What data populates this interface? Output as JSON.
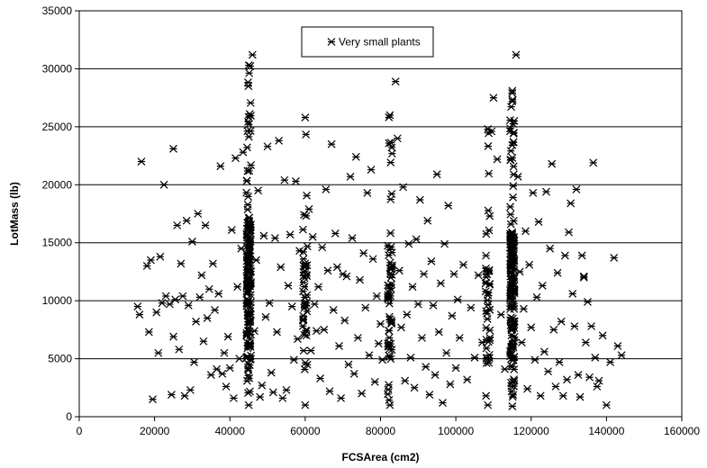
{
  "chart_data": {
    "type": "scatter",
    "title": "",
    "xlabel": "FCSArea (cm2)",
    "ylabel": "LotMass (lb)",
    "xlim": [
      0,
      160000
    ],
    "ylim": [
      0,
      35000
    ],
    "x_ticks": [
      0,
      20000,
      40000,
      60000,
      80000,
      100000,
      120000,
      140000,
      160000
    ],
    "y_ticks": [
      0,
      5000,
      10000,
      15000,
      20000,
      25000,
      30000,
      35000
    ],
    "x_tick_labels": [
      "0",
      "20000",
      "40000",
      "60000",
      "80000",
      "100000",
      "120000",
      "140000",
      "160000"
    ],
    "y_tick_labels": [
      "0",
      "5000",
      "10000",
      "15000",
      "20000",
      "25000",
      "30000",
      "35000"
    ],
    "grid": "horizontal",
    "legend_position": "top-center",
    "marker": "asterisk",
    "series": [
      {
        "name": "Very small plants",
        "color": "#000000",
        "points": [
          [
            16500,
            22000
          ],
          [
            22500,
            20000
          ],
          [
            25000,
            23100
          ],
          [
            15500,
            9500
          ],
          [
            16000,
            8800
          ],
          [
            18000,
            13000
          ],
          [
            18500,
            7300
          ],
          [
            19000,
            13500
          ],
          [
            19500,
            1500
          ],
          [
            20500,
            9000
          ],
          [
            21000,
            5500
          ],
          [
            21500,
            13800
          ],
          [
            22000,
            9800
          ],
          [
            23000,
            10400
          ],
          [
            24000,
            9700
          ],
          [
            24500,
            1900
          ],
          [
            25000,
            6900
          ],
          [
            25500,
            10100
          ],
          [
            26000,
            16500
          ],
          [
            26500,
            5800
          ],
          [
            27000,
            13200
          ],
          [
            27500,
            10400
          ],
          [
            28000,
            1800
          ],
          [
            28500,
            16900
          ],
          [
            29000,
            9600
          ],
          [
            29500,
            2300
          ],
          [
            30000,
            15100
          ],
          [
            30500,
            4700
          ],
          [
            31000,
            8200
          ],
          [
            31500,
            17500
          ],
          [
            32000,
            10300
          ],
          [
            32500,
            12200
          ],
          [
            33000,
            6500
          ],
          [
            33500,
            16500
          ],
          [
            34000,
            8500
          ],
          [
            34500,
            11000
          ],
          [
            35000,
            3600
          ],
          [
            35500,
            13200
          ],
          [
            36000,
            9200
          ],
          [
            36500,
            4100
          ],
          [
            37000,
            10600
          ],
          [
            37500,
            21600
          ],
          [
            38000,
            3700
          ],
          [
            38500,
            5500
          ],
          [
            39000,
            2600
          ],
          [
            39500,
            6900
          ],
          [
            40000,
            4200
          ],
          [
            40500,
            16100
          ],
          [
            41000,
            1600
          ],
          [
            41500,
            22300
          ],
          [
            42000,
            11200
          ],
          [
            42500,
            5000
          ],
          [
            43000,
            14500
          ],
          [
            43500,
            22800
          ],
          [
            46000,
            31200
          ],
          [
            46500,
            7400
          ],
          [
            47000,
            13500
          ],
          [
            47500,
            19500
          ],
          [
            48000,
            1700
          ],
          [
            48500,
            2700
          ],
          [
            49000,
            15600
          ],
          [
            49500,
            8600
          ],
          [
            50000,
            23300
          ],
          [
            50500,
            9800
          ],
          [
            51000,
            3800
          ],
          [
            51500,
            2100
          ],
          [
            52000,
            15400
          ],
          [
            52500,
            7300
          ],
          [
            53000,
            23800
          ],
          [
            53500,
            12900
          ],
          [
            54000,
            1600
          ],
          [
            54500,
            20400
          ],
          [
            55000,
            2300
          ],
          [
            55500,
            11300
          ],
          [
            56000,
            15700
          ],
          [
            56500,
            9500
          ],
          [
            57000,
            4900
          ],
          [
            57500,
            20300
          ],
          [
            58000,
            6700
          ],
          [
            58500,
            14300
          ],
          [
            61000,
            17900
          ],
          [
            61500,
            5700
          ],
          [
            62000,
            15500
          ],
          [
            62500,
            9700
          ],
          [
            63000,
            7400
          ],
          [
            63500,
            11200
          ],
          [
            64000,
            3300
          ],
          [
            64500,
            14600
          ],
          [
            65000,
            7500
          ],
          [
            65500,
            19600
          ],
          [
            66000,
            12600
          ],
          [
            66500,
            2200
          ],
          [
            67000,
            23500
          ],
          [
            67500,
            9200
          ],
          [
            68000,
            15800
          ],
          [
            68500,
            12900
          ],
          [
            69000,
            6100
          ],
          [
            69500,
            1600
          ],
          [
            70000,
            12300
          ],
          [
            70500,
            8300
          ],
          [
            71000,
            12100
          ],
          [
            71500,
            4500
          ],
          [
            72000,
            20700
          ],
          [
            72500,
            15400
          ],
          [
            73000,
            3700
          ],
          [
            73500,
            22400
          ],
          [
            74000,
            6800
          ],
          [
            74500,
            11800
          ],
          [
            75000,
            2000
          ],
          [
            75500,
            14100
          ],
          [
            76000,
            9400
          ],
          [
            76500,
            19300
          ],
          [
            77000,
            5300
          ],
          [
            77500,
            21300
          ],
          [
            78000,
            13600
          ],
          [
            78500,
            3000
          ],
          [
            79000,
            10400
          ],
          [
            79500,
            6300
          ],
          [
            80000,
            8000
          ],
          [
            80500,
            4900
          ],
          [
            84000,
            28900
          ],
          [
            84500,
            24000
          ],
          [
            85000,
            12600
          ],
          [
            85500,
            7700
          ],
          [
            86000,
            19800
          ],
          [
            86500,
            3100
          ],
          [
            87000,
            8800
          ],
          [
            87500,
            14900
          ],
          [
            88000,
            5100
          ],
          [
            88500,
            11200
          ],
          [
            89000,
            2500
          ],
          [
            89500,
            15300
          ],
          [
            90000,
            9700
          ],
          [
            90500,
            18700
          ],
          [
            91000,
            6800
          ],
          [
            91500,
            12300
          ],
          [
            92000,
            4300
          ],
          [
            92500,
            16900
          ],
          [
            93000,
            1900
          ],
          [
            93500,
            13400
          ],
          [
            94000,
            9600
          ],
          [
            94500,
            3600
          ],
          [
            95000,
            20900
          ],
          [
            95500,
            7300
          ],
          [
            96000,
            11500
          ],
          [
            96500,
            1200
          ],
          [
            97000,
            14900
          ],
          [
            97500,
            5500
          ],
          [
            98000,
            18200
          ],
          [
            98500,
            2800
          ],
          [
            99000,
            8700
          ],
          [
            99500,
            12300
          ],
          [
            100000,
            4200
          ],
          [
            100500,
            10100
          ],
          [
            101000,
            6800
          ],
          [
            102000,
            13100
          ],
          [
            103000,
            3200
          ],
          [
            104000,
            9400
          ],
          [
            105000,
            5100
          ],
          [
            106000,
            12200
          ],
          [
            107000,
            6400
          ],
          [
            108000,
            1800
          ],
          [
            109000,
            17300
          ],
          [
            110000,
            27500
          ],
          [
            111000,
            22200
          ],
          [
            112000,
            8800
          ],
          [
            113000,
            4100
          ],
          [
            116000,
            31200
          ],
          [
            116500,
            20700
          ],
          [
            117000,
            12500
          ],
          [
            117500,
            6400
          ],
          [
            118000,
            9300
          ],
          [
            118500,
            16000
          ],
          [
            119000,
            2400
          ],
          [
            119500,
            13100
          ],
          [
            120000,
            7700
          ],
          [
            120500,
            19300
          ],
          [
            121000,
            4900
          ],
          [
            121500,
            10300
          ],
          [
            122000,
            16800
          ],
          [
            122500,
            1800
          ],
          [
            123000,
            11300
          ],
          [
            123500,
            5600
          ],
          [
            124000,
            19400
          ],
          [
            124500,
            3900
          ],
          [
            125000,
            14500
          ],
          [
            125500,
            21800
          ],
          [
            126000,
            7500
          ],
          [
            126500,
            2600
          ],
          [
            127000,
            12400
          ],
          [
            127500,
            4700
          ],
          [
            128000,
            8200
          ],
          [
            128500,
            1800
          ],
          [
            129000,
            13900
          ],
          [
            129500,
            3200
          ],
          [
            130000,
            15900
          ],
          [
            130500,
            18400
          ],
          [
            131000,
            10600
          ],
          [
            131500,
            7800
          ],
          [
            132000,
            19600
          ],
          [
            132500,
            3600
          ],
          [
            133000,
            1700
          ],
          [
            133500,
            13900
          ],
          [
            134000,
            12100
          ],
          [
            134500,
            6400
          ],
          [
            135000,
            9900
          ],
          [
            135500,
            3400
          ],
          [
            136000,
            7800
          ],
          [
            136500,
            21900
          ],
          [
            137000,
            5100
          ],
          [
            137500,
            2600
          ],
          [
            138000,
            3100
          ],
          [
            139000,
            7000
          ],
          [
            140000,
            1000
          ],
          [
            141000,
            4700
          ],
          [
            142000,
            13700
          ],
          [
            143000,
            6100
          ],
          [
            144000,
            5300
          ],
          [
            109500,
            24600
          ],
          [
            109000,
            6600
          ],
          [
            134000,
            12000
          ]
        ]
      }
    ],
    "dense_columns": [
      {
        "x": 45000,
        "ymin": 1000,
        "ymax": 30300,
        "count": 170
      },
      {
        "x": 60000,
        "ymin": 1000,
        "ymax": 25800,
        "count": 45
      },
      {
        "x": 82500,
        "ymin": 1000,
        "ymax": 26000,
        "count": 60
      },
      {
        "x": 108500,
        "ymin": 1000,
        "ymax": 24800,
        "count": 40
      },
      {
        "x": 115000,
        "ymin": 900,
        "ymax": 28100,
        "count": 180
      }
    ]
  }
}
